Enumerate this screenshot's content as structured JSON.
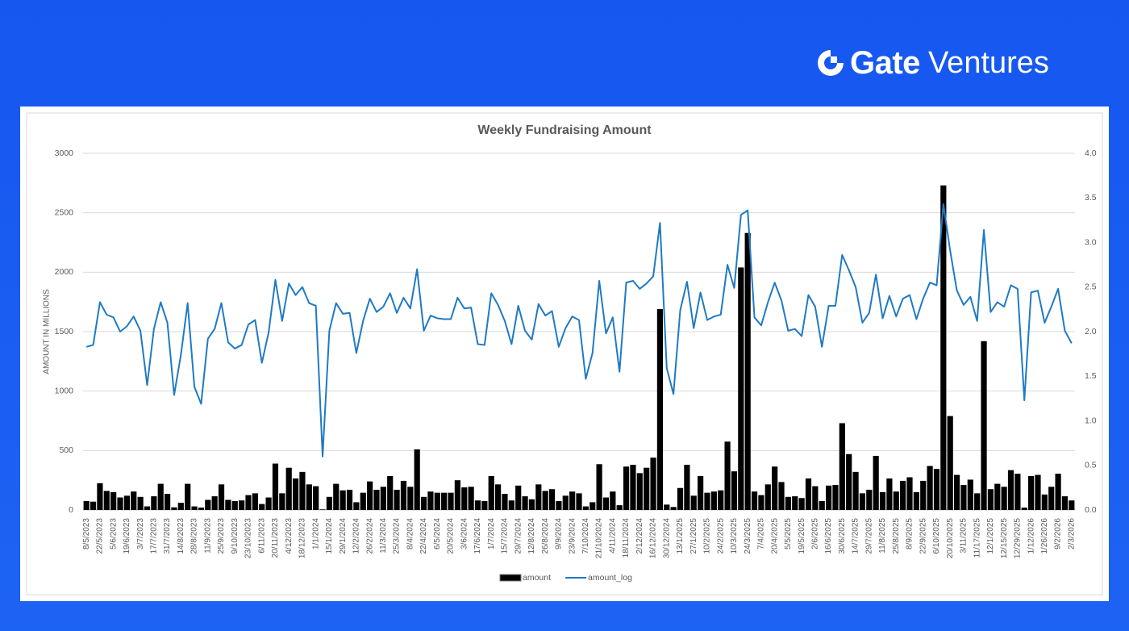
{
  "brand": {
    "name": "Gate",
    "product": "Ventures"
  },
  "chart_data": {
    "type": "combo",
    "title": "Weekly Fundraising Amount",
    "y_label": "AMOUNT IN MILLIONS",
    "categories": [
      "8/5/2023",
      null,
      "22/5/2023",
      null,
      "5/6/2023",
      null,
      "19/6/2023",
      null,
      "3/7/2023",
      null,
      "17/7/2023",
      null,
      "31/7/2023",
      null,
      "14/8/2023",
      null,
      "28/8/2023",
      null,
      "11/9/2023",
      null,
      "25/9/2023",
      null,
      "9/10/2023",
      null,
      "23/10/2023",
      null,
      "6/11/2023",
      null,
      "20/11/2023",
      null,
      "4/12/2023",
      null,
      "18/12/2023",
      null,
      "1/1/2024",
      null,
      "15/1/2024",
      null,
      "29/1/2024",
      null,
      "12/2/2024",
      null,
      "26/2/2024",
      null,
      "11/3/2024",
      null,
      "25/3/2024",
      null,
      "8/4/2024",
      null,
      "22/4/2024",
      null,
      "6/5/2024",
      null,
      "20/5/2024",
      null,
      "3/6/2024",
      null,
      "17/6/2024",
      null,
      "1/7/2024",
      null,
      "15/7/2024",
      null,
      "29/7/2024",
      null,
      "12/8/2024",
      null,
      "26/8/2024",
      null,
      "9/9/2024",
      null,
      "23/9/2024",
      null,
      "7/10/2024",
      null,
      "21/10/2024",
      null,
      "4/11/2024",
      null,
      "18/11/2024",
      null,
      "2/12/2024",
      null,
      "16/12/2024",
      null,
      "30/12/2024",
      null,
      "13/1/2025",
      null,
      "27/1/2025",
      null,
      "10/2/2025",
      null,
      "24/2/2025",
      null,
      "10/3/2025",
      null,
      "24/3/2025",
      null,
      "7/4/2025",
      null,
      "20/4/2025",
      null,
      "5/5/2025",
      null,
      "19/5/2025",
      null,
      "2/6/2025",
      null,
      "16/6/2025",
      null,
      "30/6/2025",
      null,
      "14/7/2025",
      null,
      "29/7/2025",
      null,
      "11/8/2025",
      null,
      "25/8/2025",
      null,
      "8/9/2025",
      null,
      "22/9/2025",
      null,
      "6/10/2025",
      null,
      "20/10/2025",
      null,
      "3/11/2025",
      null,
      "11/17/2025",
      null,
      "12/1/2025",
      null,
      "12/15/2025",
      null,
      "12/29/2025",
      null,
      "1/12/2026",
      null,
      "1/26/2026",
      null,
      "9/2/2026",
      null,
      "2/3/2026"
    ],
    "series": [
      {
        "name": "amount",
        "type": "bar",
        "color": "#000000",
        "values": [
          75,
          70,
          225,
          160,
          150,
          105,
          120,
          155,
          110,
          30,
          115,
          220,
          135,
          22,
          60,
          220,
          30,
          20,
          85,
          115,
          215,
          85,
          75,
          80,
          125,
          140,
          50,
          105,
          390,
          140,
          355,
          265,
          320,
          215,
          200,
          5,
          110,
          220,
          165,
          170,
          65,
          145,
          240,
          170,
          195,
          285,
          170,
          245,
          195,
          510,
          110,
          155,
          145,
          145,
          145,
          250,
          190,
          195,
          80,
          75,
          285,
          215,
          135,
          80,
          205,
          115,
          90,
          215,
          160,
          175,
          75,
          120,
          155,
          140,
          30,
          65,
          385,
          105,
          155,
          40,
          365,
          380,
          310,
          355,
          440,
          1690,
          45,
          25,
          185,
          380,
          120,
          285,
          145,
          155,
          165,
          575,
          325,
          2040,
          2330,
          155,
          125,
          215,
          365,
          235,
          110,
          115,
          100,
          265,
          200,
          75,
          205,
          210,
          730,
          470,
          320,
          140,
          170,
          455,
          150,
          265,
          155,
          245,
          275,
          150,
          245,
          370,
          345,
          2730,
          790,
          295,
          210,
          255,
          140,
          1420,
          175,
          220,
          195,
          335,
          305,
          20,
          285,
          295,
          130,
          195,
          305,
          115,
          80
        ]
      },
      {
        "name": "amount_log",
        "type": "line",
        "axis": "y2",
        "color": "#1f7ac4",
        "values": [
          1.83,
          1.85,
          2.33,
          2.19,
          2.16,
          2.0,
          2.06,
          2.17,
          2.01,
          1.4,
          2.03,
          2.33,
          2.1,
          1.29,
          1.74,
          2.32,
          1.38,
          1.19,
          1.92,
          2.03,
          2.32,
          1.88,
          1.81,
          1.85,
          2.08,
          2.13,
          1.65,
          1.99,
          2.58,
          2.12,
          2.54,
          2.41,
          2.5,
          2.32,
          2.29,
          0.6,
          2.01,
          2.32,
          2.2,
          2.21,
          1.76,
          2.12,
          2.37,
          2.22,
          2.28,
          2.43,
          2.21,
          2.38,
          2.26,
          2.7,
          2.01,
          2.18,
          2.15,
          2.14,
          2.14,
          2.38,
          2.26,
          2.27,
          1.86,
          1.85,
          2.43,
          2.3,
          2.12,
          1.86,
          2.29,
          2.01,
          1.91,
          2.31,
          2.18,
          2.23,
          1.83,
          2.04,
          2.17,
          2.13,
          1.47,
          1.76,
          2.57,
          1.98,
          2.16,
          1.55,
          2.55,
          2.57,
          2.48,
          2.54,
          2.62,
          3.22,
          1.59,
          1.3,
          2.24,
          2.56,
          2.04,
          2.44,
          2.13,
          2.17,
          2.19,
          2.75,
          2.49,
          3.31,
          3.36,
          2.16,
          2.07,
          2.33,
          2.55,
          2.35,
          2.01,
          2.03,
          1.95,
          2.41,
          2.28,
          1.83,
          2.29,
          2.29,
          2.86,
          2.69,
          2.5,
          2.1,
          2.21,
          2.64,
          2.15,
          2.4,
          2.17,
          2.37,
          2.41,
          2.14,
          2.37,
          2.55,
          2.52,
          3.43,
          2.91,
          2.46,
          2.3,
          2.39,
          2.12,
          3.14,
          2.22,
          2.33,
          2.28,
          2.52,
          2.48,
          1.23,
          2.44,
          2.46,
          2.1,
          2.28,
          2.48,
          2.01,
          1.87
        ]
      }
    ],
    "ylim": [
      0,
      3000
    ],
    "yticks": [
      0,
      500,
      1000,
      1500,
      2000,
      2500,
      3000
    ],
    "y2lim": [
      0,
      4
    ],
    "y2ticks": [
      {
        "value": 0,
        "label": "0.0"
      },
      {
        "value": 0.5,
        "label": "0.5"
      },
      {
        "value": 1,
        "label": "1.0"
      },
      {
        "value": 1.5,
        "label": "1.5"
      },
      {
        "value": 2,
        "label": "2.0"
      },
      {
        "value": 2.5,
        "label": "2.5"
      },
      {
        "value": 3,
        "label": "3.0"
      },
      {
        "value": 3.5,
        "label": "3.5"
      },
      {
        "value": 4,
        "label": "4.0"
      }
    ],
    "grid": true,
    "legend": "bottom"
  }
}
